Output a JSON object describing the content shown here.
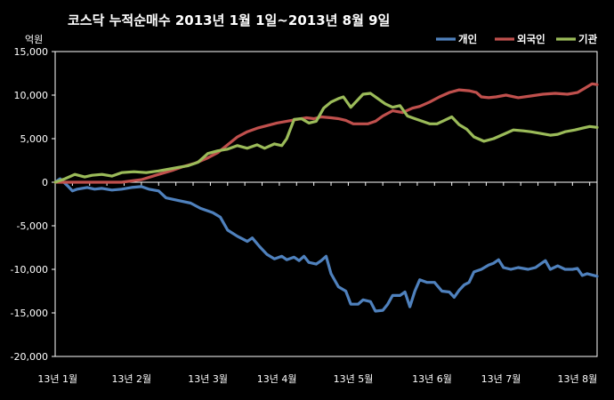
{
  "chart_data": {
    "type": "line",
    "title": "코스닥  누적순매수 2013년 1월 1일~2013년 8월 9일",
    "y_unit": "억원",
    "ylim": [
      -20000,
      15000
    ],
    "yticks": [
      15000,
      10000,
      5000,
      0,
      -5000,
      -10000,
      -15000,
      -20000
    ],
    "ytick_labels": [
      "15,000",
      "10,000",
      "5,000",
      "0",
      "-5,000",
      "-10,000",
      "-15,000",
      "-20,000"
    ],
    "x_labels": [
      "13년 1월",
      "13년 2월",
      "13년 3월",
      "13년 4월",
      "13년 5월",
      "13년 6월",
      "13년 7월",
      "13년 8월"
    ],
    "x_label_dates": [
      "2013-01-02",
      "2013-02-01",
      "2013-03-04",
      "2013-04-01",
      "2013-05-02",
      "2013-06-03",
      "2013-07-01",
      "2013-08-01"
    ],
    "x_range": [
      "2013-01-01",
      "2013-08-09"
    ],
    "grid": false,
    "legend_position": "top-right",
    "series": [
      {
        "name": "개인",
        "color": "#4f81bd",
        "points": [
          [
            "2013-01-01",
            0
          ],
          [
            "2013-01-03",
            400
          ],
          [
            "2013-01-06",
            -400
          ],
          [
            "2013-01-08",
            -1000
          ],
          [
            "2013-01-10",
            -800
          ],
          [
            "2013-01-14",
            -600
          ],
          [
            "2013-01-17",
            -800
          ],
          [
            "2013-01-20",
            -700
          ],
          [
            "2013-01-24",
            -900
          ],
          [
            "2013-01-28",
            -800
          ],
          [
            "2013-02-01",
            -600
          ],
          [
            "2013-02-05",
            -500
          ],
          [
            "2013-02-08",
            -800
          ],
          [
            "2013-02-12",
            -1000
          ],
          [
            "2013-02-15",
            -1800
          ],
          [
            "2013-02-20",
            -2100
          ],
          [
            "2013-02-25",
            -2400
          ],
          [
            "2013-03-01",
            -3000
          ],
          [
            "2013-03-06",
            -3500
          ],
          [
            "2013-03-09",
            -4000
          ],
          [
            "2013-03-12",
            -5500
          ],
          [
            "2013-03-16",
            -6200
          ],
          [
            "2013-03-18",
            -6500
          ],
          [
            "2013-03-20",
            -6800
          ],
          [
            "2013-03-22",
            -6400
          ],
          [
            "2013-03-25",
            -7400
          ],
          [
            "2013-03-28",
            -8300
          ],
          [
            "2013-03-31",
            -8800
          ],
          [
            "2013-04-03",
            -8500
          ],
          [
            "2013-04-05",
            -8900
          ],
          [
            "2013-04-08",
            -8600
          ],
          [
            "2013-04-10",
            -9000
          ],
          [
            "2013-04-12",
            -8500
          ],
          [
            "2013-04-14",
            -9200
          ],
          [
            "2013-04-17",
            -9400
          ],
          [
            "2013-04-19",
            -9000
          ],
          [
            "2013-04-21",
            -8500
          ],
          [
            "2013-04-23",
            -10500
          ],
          [
            "2013-04-26",
            -12000
          ],
          [
            "2013-04-29",
            -12500
          ],
          [
            "2013-05-01",
            -14000
          ],
          [
            "2013-05-04",
            -14000
          ],
          [
            "2013-05-06",
            -13500
          ],
          [
            "2013-05-09",
            -13700
          ],
          [
            "2013-05-11",
            -14800
          ],
          [
            "2013-05-14",
            -14700
          ],
          [
            "2013-05-16",
            -14000
          ],
          [
            "2013-05-18",
            -13000
          ],
          [
            "2013-05-21",
            -13000
          ],
          [
            "2013-05-23",
            -12600
          ],
          [
            "2013-05-25",
            -14300
          ],
          [
            "2013-05-27",
            -12500
          ],
          [
            "2013-05-29",
            -11200
          ],
          [
            "2013-06-01",
            -11500
          ],
          [
            "2013-06-04",
            -11500
          ],
          [
            "2013-06-07",
            -12500
          ],
          [
            "2013-06-10",
            -12600
          ],
          [
            "2013-06-12",
            -13200
          ],
          [
            "2013-06-14",
            -12400
          ],
          [
            "2013-06-16",
            -11800
          ],
          [
            "2013-06-18",
            -11500
          ],
          [
            "2013-06-20",
            -10300
          ],
          [
            "2013-06-23",
            -10000
          ],
          [
            "2013-06-26",
            -9500
          ],
          [
            "2013-06-28",
            -9300
          ],
          [
            "2013-06-30",
            -8900
          ],
          [
            "2013-07-02",
            -9800
          ],
          [
            "2013-07-05",
            -10000
          ],
          [
            "2013-07-08",
            -9800
          ],
          [
            "2013-07-12",
            -10000
          ],
          [
            "2013-07-15",
            -9800
          ],
          [
            "2013-07-17",
            -9400
          ],
          [
            "2013-07-19",
            -9000
          ],
          [
            "2013-07-21",
            -10000
          ],
          [
            "2013-07-24",
            -9600
          ],
          [
            "2013-07-27",
            -10000
          ],
          [
            "2013-07-30",
            -10000
          ],
          [
            "2013-08-01",
            -9900
          ],
          [
            "2013-08-03",
            -10700
          ],
          [
            "2013-08-05",
            -10500
          ],
          [
            "2013-08-09",
            -10800
          ]
        ]
      },
      {
        "name": "외국인",
        "color": "#c0504d",
        "points": [
          [
            "2013-01-01",
            0
          ],
          [
            "2013-01-10",
            0
          ],
          [
            "2013-01-20",
            0
          ],
          [
            "2013-01-28",
            0
          ],
          [
            "2013-02-05",
            300
          ],
          [
            "2013-02-12",
            900
          ],
          [
            "2013-02-18",
            1400
          ],
          [
            "2013-02-22",
            1800
          ],
          [
            "2013-02-27",
            2200
          ],
          [
            "2013-03-04",
            2800
          ],
          [
            "2013-03-08",
            3400
          ],
          [
            "2013-03-12",
            4300
          ],
          [
            "2013-03-16",
            5200
          ],
          [
            "2013-03-20",
            5800
          ],
          [
            "2013-03-24",
            6200
          ],
          [
            "2013-03-28",
            6500
          ],
          [
            "2013-04-01",
            6800
          ],
          [
            "2013-04-05",
            7000
          ],
          [
            "2013-04-09",
            7200
          ],
          [
            "2013-04-13",
            7400
          ],
          [
            "2013-04-16",
            7300
          ],
          [
            "2013-04-19",
            7500
          ],
          [
            "2013-04-23",
            7400
          ],
          [
            "2013-04-26",
            7300
          ],
          [
            "2013-04-29",
            7100
          ],
          [
            "2013-05-02",
            6700
          ],
          [
            "2013-05-05",
            6700
          ],
          [
            "2013-05-08",
            6700
          ],
          [
            "2013-05-11",
            7000
          ],
          [
            "2013-05-14",
            7600
          ],
          [
            "2013-05-18",
            8200
          ],
          [
            "2013-05-22",
            8000
          ],
          [
            "2013-05-26",
            8500
          ],
          [
            "2013-05-29",
            8700
          ],
          [
            "2013-06-02",
            9200
          ],
          [
            "2013-06-06",
            9800
          ],
          [
            "2013-06-10",
            10300
          ],
          [
            "2013-06-14",
            10600
          ],
          [
            "2013-06-18",
            10500
          ],
          [
            "2013-06-21",
            10300
          ],
          [
            "2013-06-23",
            9800
          ],
          [
            "2013-06-26",
            9700
          ],
          [
            "2013-06-29",
            9800
          ],
          [
            "2013-07-03",
            10000
          ],
          [
            "2013-07-08",
            9700
          ],
          [
            "2013-07-13",
            9900
          ],
          [
            "2013-07-18",
            10100
          ],
          [
            "2013-07-23",
            10200
          ],
          [
            "2013-07-28",
            10100
          ],
          [
            "2013-08-01",
            10300
          ],
          [
            "2013-08-04",
            10800
          ],
          [
            "2013-08-07",
            11300
          ],
          [
            "2013-08-09",
            11200
          ]
        ]
      },
      {
        "name": "기관",
        "color": "#9bbb59",
        "points": [
          [
            "2013-01-01",
            0
          ],
          [
            "2013-01-05",
            400
          ],
          [
            "2013-01-09",
            900
          ],
          [
            "2013-01-13",
            600
          ],
          [
            "2013-01-16",
            800
          ],
          [
            "2013-01-20",
            900
          ],
          [
            "2013-01-24",
            700
          ],
          [
            "2013-01-28",
            1100
          ],
          [
            "2013-02-02",
            1200
          ],
          [
            "2013-02-07",
            1100
          ],
          [
            "2013-02-12",
            1300
          ],
          [
            "2013-02-16",
            1500
          ],
          [
            "2013-02-20",
            1700
          ],
          [
            "2013-02-24",
            1900
          ],
          [
            "2013-02-28",
            2300
          ],
          [
            "2013-03-04",
            3300
          ],
          [
            "2013-03-08",
            3600
          ],
          [
            "2013-03-12",
            3800
          ],
          [
            "2013-03-16",
            4200
          ],
          [
            "2013-03-20",
            3900
          ],
          [
            "2013-03-24",
            4300
          ],
          [
            "2013-03-27",
            3900
          ],
          [
            "2013-03-31",
            4400
          ],
          [
            "2013-04-03",
            4200
          ],
          [
            "2013-04-05",
            5000
          ],
          [
            "2013-04-08",
            7200
          ],
          [
            "2013-04-11",
            7300
          ],
          [
            "2013-04-14",
            6800
          ],
          [
            "2013-04-17",
            7000
          ],
          [
            "2013-04-20",
            8500
          ],
          [
            "2013-04-23",
            9200
          ],
          [
            "2013-04-26",
            9600
          ],
          [
            "2013-04-28",
            9800
          ],
          [
            "2013-05-01",
            8600
          ],
          [
            "2013-05-04",
            9500
          ],
          [
            "2013-05-06",
            10100
          ],
          [
            "2013-05-09",
            10200
          ],
          [
            "2013-05-12",
            9600
          ],
          [
            "2013-05-15",
            9000
          ],
          [
            "2013-05-18",
            8600
          ],
          [
            "2013-05-21",
            8800
          ],
          [
            "2013-05-24",
            7600
          ],
          [
            "2013-05-27",
            7300
          ],
          [
            "2013-05-30",
            7000
          ],
          [
            "2013-06-02",
            6700
          ],
          [
            "2013-06-05",
            6700
          ],
          [
            "2013-06-08",
            7100
          ],
          [
            "2013-06-11",
            7500
          ],
          [
            "2013-06-14",
            6600
          ],
          [
            "2013-06-17",
            6100
          ],
          [
            "2013-06-20",
            5200
          ],
          [
            "2013-06-24",
            4700
          ],
          [
            "2013-06-28",
            5000
          ],
          [
            "2013-07-02",
            5500
          ],
          [
            "2013-07-06",
            6000
          ],
          [
            "2013-07-10",
            5900
          ],
          [
            "2013-07-13",
            5800
          ],
          [
            "2013-07-17",
            5600
          ],
          [
            "2013-07-21",
            5400
          ],
          [
            "2013-07-24",
            5500
          ],
          [
            "2013-07-27",
            5800
          ],
          [
            "2013-07-31",
            6000
          ],
          [
            "2013-08-03",
            6200
          ],
          [
            "2013-08-06",
            6400
          ],
          [
            "2013-08-09",
            6300
          ]
        ]
      }
    ]
  }
}
